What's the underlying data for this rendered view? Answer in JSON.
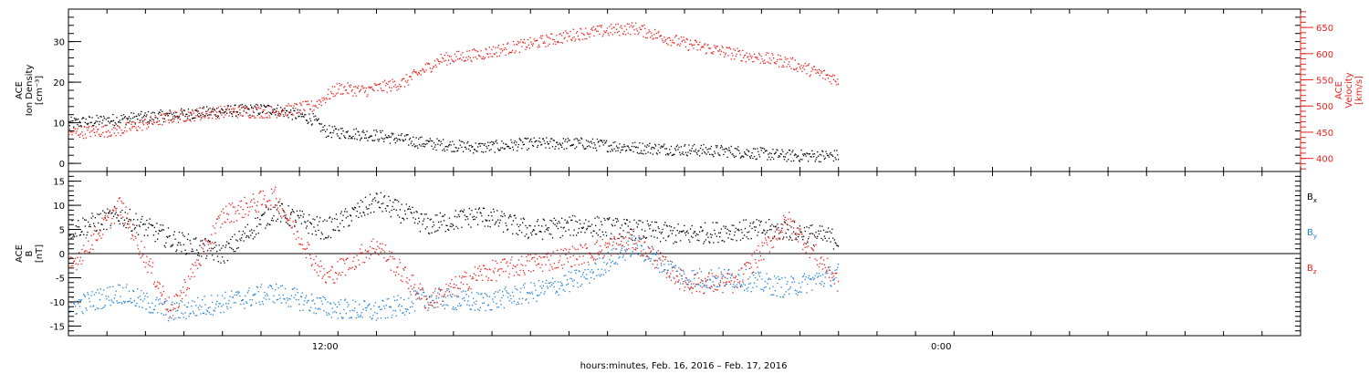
{
  "xlabel": "hours:minutes, Feb. 16, 2016 – Feb. 17, 2016",
  "x_ticks": [
    "12:00",
    "0:00"
  ],
  "colors": {
    "black": "#000000",
    "red": "#e8231f",
    "blue": "#1f7fd6"
  },
  "chart_data": [
    {
      "type": "scatter",
      "x_range_hours": [
        0,
        48
      ],
      "ylabel_lines": [
        "ACE",
        "Ion Density",
        "[cm⁻³]"
      ],
      "y_ticks": [
        0,
        10,
        20,
        30
      ],
      "ylim": [
        -2,
        38
      ],
      "y2label_lines": [
        "ACE",
        "Velocity",
        "[km/s]"
      ],
      "y2_ticks": [
        400,
        450,
        500,
        550,
        600,
        650
      ],
      "y2lim": [
        375,
        685
      ],
      "series": [
        {
          "name": "",
          "axis": "left",
          "color": "black",
          "t_end": 30,
          "x": [
            0,
            2,
            4,
            6,
            8,
            9.5,
            10,
            12,
            14,
            16,
            18,
            20,
            22,
            24,
            26,
            28,
            30
          ],
          "y": [
            10,
            11,
            12,
            13,
            13.5,
            11,
            8,
            7,
            5,
            4,
            5,
            5,
            4,
            3.5,
            3,
            2,
            2
          ]
        },
        {
          "name": "",
          "axis": "right",
          "color": "red",
          "t_end": 30,
          "x": [
            0,
            2,
            4,
            6,
            8,
            9.5,
            10.5,
            11.5,
            13,
            14.5,
            16,
            18,
            20,
            22,
            24,
            26,
            28,
            30
          ],
          "y": [
            450,
            455,
            480,
            490,
            490,
            500,
            535,
            530,
            545,
            590,
            600,
            620,
            640,
            650,
            620,
            600,
            585,
            550
          ]
        }
      ]
    },
    {
      "type": "scatter",
      "x_range_hours": [
        0,
        48
      ],
      "ylabel_lines": [
        "ACE",
        "B",
        "[nT]"
      ],
      "y_ticks": [
        -15,
        -10,
        -5,
        0,
        5,
        10,
        15
      ],
      "ylim": [
        -17,
        17
      ],
      "zero_line": true,
      "legend_position": "right",
      "series": [
        {
          "name": "B",
          "sub": "x",
          "color": "black",
          "t_end": 30,
          "x": [
            0,
            2,
            4,
            6,
            8,
            10,
            12,
            14,
            16,
            18,
            20,
            22,
            24,
            26,
            28,
            30
          ],
          "y": [
            5,
            8,
            3,
            0,
            9,
            5,
            11,
            6,
            8,
            5,
            6,
            5,
            4,
            5,
            5,
            3
          ]
        },
        {
          "name": "B",
          "sub": "y",
          "color": "blue",
          "t_end": 30,
          "x": [
            0,
            2,
            4,
            6,
            8,
            10,
            12,
            14,
            16,
            18,
            20,
            22,
            24,
            26,
            28,
            30
          ],
          "y": [
            -11,
            -8,
            -12,
            -10,
            -8,
            -11,
            -12,
            -9,
            -10,
            -8,
            -5,
            2,
            -5,
            -5,
            -7,
            -4
          ]
        },
        {
          "name": "B",
          "sub": "z",
          "color": "red",
          "t_end": 30,
          "x": [
            0,
            2,
            4,
            6,
            8,
            10,
            12,
            14,
            16,
            18,
            20,
            22,
            24,
            26,
            28,
            30
          ],
          "y": [
            -3,
            10,
            -12,
            8,
            12,
            -5,
            2,
            -10,
            -4,
            -2,
            0,
            3,
            -6,
            -6,
            7,
            -6
          ]
        }
      ]
    }
  ]
}
